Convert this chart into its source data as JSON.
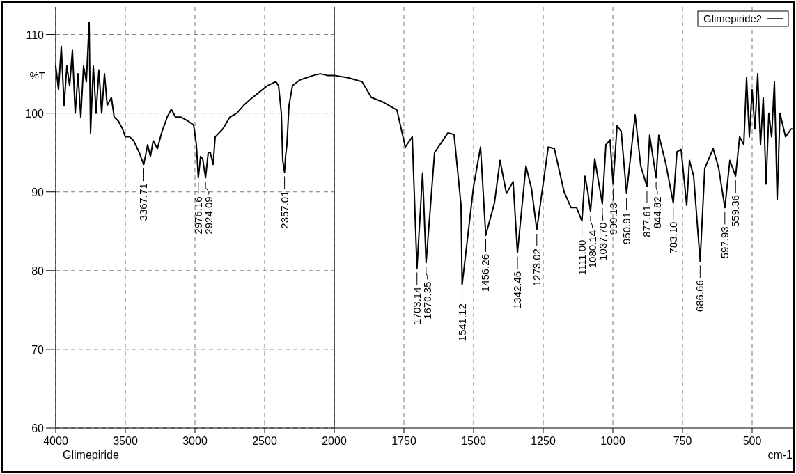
{
  "chart_data": [
    {
      "type": "line",
      "ylabel": "%T",
      "grid": true,
      "line_style": "solid",
      "xlim": [
        4000,
        2000
      ],
      "ylim": [
        60,
        113.5
      ],
      "xticks": [
        4000,
        3500,
        3000,
        2500,
        2000
      ],
      "yticks": [
        60,
        70,
        80,
        90,
        100,
        110
      ],
      "series": [
        {
          "color": "#000000",
          "x": [
            4000,
            3980,
            3960,
            3940,
            3920,
            3900,
            3880,
            3860,
            3840,
            3820,
            3800,
            3780,
            3760,
            3750,
            3730,
            3710,
            3690,
            3670,
            3650,
            3630,
            3600,
            3580,
            3550,
            3520,
            3500,
            3470,
            3440,
            3400,
            3380,
            3367.71,
            3340,
            3320,
            3300,
            3270,
            3240,
            3200,
            3170,
            3140,
            3100,
            3050,
            3010,
            2990,
            2976.16,
            2960,
            2945,
            2924.09,
            2905,
            2890,
            2870,
            2855,
            2800,
            2750,
            2700,
            2650,
            2600,
            2550,
            2480,
            2420,
            2400,
            2380,
            2370,
            2357.01,
            2350,
            2340,
            2325,
            2300,
            2250,
            2200,
            2150,
            2100,
            2050,
            2000
          ],
          "values": [
            106,
            103,
            108.5,
            101,
            106,
            103.5,
            108,
            100,
            105,
            99.5,
            106,
            104,
            111.5,
            97.5,
            106,
            100,
            105.5,
            100,
            105,
            101,
            102,
            99.5,
            99,
            98,
            97,
            97,
            96.5,
            95,
            94,
            93.5,
            96,
            94.5,
            96.5,
            95.5,
            97.5,
            99.5,
            100.5,
            99.5,
            99.5,
            99,
            98.5,
            96,
            91.8,
            94.5,
            94.2,
            91.8,
            95,
            95,
            93.5,
            97,
            98,
            99.5,
            100,
            101,
            101.8,
            102.5,
            103.5,
            104,
            103.5,
            100,
            94,
            92.5,
            94.5,
            96,
            101,
            103.5,
            104.2,
            104.5,
            104.8,
            105,
            104.8,
            104.8
          ]
        }
      ],
      "annotations": [
        "Glimepiride",
        {
          "text": "3367.71",
          "x": 3367.71,
          "y": 93.5
        },
        {
          "text": "2976.16",
          "x": 2976.16,
          "y": 91.8
        },
        {
          "text": "2924.09",
          "x": 2924.09,
          "y": 91.8
        },
        {
          "text": "2357.01",
          "x": 2357.01,
          "y": 92.5
        }
      ]
    },
    {
      "type": "line",
      "xlabel": "cm-1",
      "legend": "top right",
      "grid": true,
      "line_style": "solid",
      "tick_labels": "x",
      "xlim": [
        2000,
        350
      ],
      "ylim": [
        60,
        113.5
      ],
      "xticks": [
        1750,
        1500,
        1250,
        1000,
        750,
        500
      ],
      "series": [
        {
          "name": "Glimepiride2",
          "color": "#000000",
          "x": [
            2000,
            1950,
            1900,
            1867,
            1830,
            1775,
            1745,
            1720,
            1703.14,
            1683,
            1670.35,
            1640,
            1592,
            1570,
            1545,
            1541.12,
            1500,
            1475,
            1456.26,
            1425,
            1405,
            1382,
            1358,
            1342.46,
            1312,
            1292,
            1273.02,
            1232,
            1210,
            1175,
            1150,
            1130,
            1111,
            1100,
            1090,
            1080.14,
            1065,
            1050,
            1037.7,
            1025,
            1010,
            999.13,
            985,
            970,
            950.91,
            920,
            900,
            877.61,
            868,
            844.82,
            835,
            810,
            783.1,
            770,
            755,
            735,
            725,
            710,
            686.66,
            670,
            640,
            620,
            597.93,
            580,
            559.36,
            545,
            530,
            520,
            510,
            500,
            490,
            480,
            470,
            460,
            450,
            440,
            430,
            420,
            410,
            400,
            380,
            360,
            350
          ],
          "values": [
            104.8,
            104.5,
            104,
            102,
            101.5,
            100.4,
            95.7,
            97,
            80.3,
            92.4,
            81,
            95,
            97.5,
            97.3,
            88.3,
            78.2,
            90.7,
            95.7,
            84.5,
            88.6,
            94,
            89.8,
            91.3,
            82.3,
            93.3,
            90.4,
            85.2,
            95.7,
            95.5,
            90,
            88,
            88,
            86.3,
            92,
            90,
            87.5,
            94.2,
            91,
            88.5,
            96,
            96.6,
            91,
            98.4,
            97.7,
            89.8,
            99.8,
            93.3,
            90.7,
            97.2,
            91.8,
            97.2,
            93.6,
            88.6,
            95.1,
            95.4,
            88.3,
            94,
            92,
            81.2,
            93,
            95.5,
            93,
            88,
            94,
            92,
            97,
            96,
            104.5,
            97,
            103,
            98,
            105,
            96,
            102,
            91,
            100,
            97,
            104,
            89,
            100,
            97,
            98,
            98
          ]
        }
      ],
      "annotations": [
        {
          "text": "1703.14",
          "x": 1703.14,
          "y": 80.3
        },
        {
          "text": "1670.35",
          "x": 1670.35,
          "y": 81
        },
        {
          "text": "1541.12",
          "x": 1541.12,
          "y": 78.2
        },
        {
          "text": "1456.26",
          "x": 1456.26,
          "y": 84.5
        },
        {
          "text": "1342.46",
          "x": 1342.46,
          "y": 82.3
        },
        {
          "text": "1273.02",
          "x": 1273.02,
          "y": 85.2
        },
        {
          "text": "1111.00",
          "x": 1111,
          "y": 86.3
        },
        {
          "text": "1080.14",
          "x": 1080.14,
          "y": 87.5
        },
        {
          "text": "1037.70",
          "x": 1037.7,
          "y": 88.5
        },
        {
          "text": "999.13",
          "x": 999.13,
          "y": 91
        },
        {
          "text": "950.91",
          "x": 950.91,
          "y": 89.8
        },
        {
          "text": "877.61",
          "x": 877.61,
          "y": 90.7
        },
        {
          "text": "844.82",
          "x": 844.82,
          "y": 91.8
        },
        {
          "text": "783.10",
          "x": 783.1,
          "y": 88.6
        },
        {
          "text": "686.66",
          "x": 686.66,
          "y": 81.2
        },
        {
          "text": "597.93",
          "x": 597.93,
          "y": 88
        },
        {
          "text": "559.36",
          "x": 559.36,
          "y": 92
        }
      ]
    }
  ]
}
